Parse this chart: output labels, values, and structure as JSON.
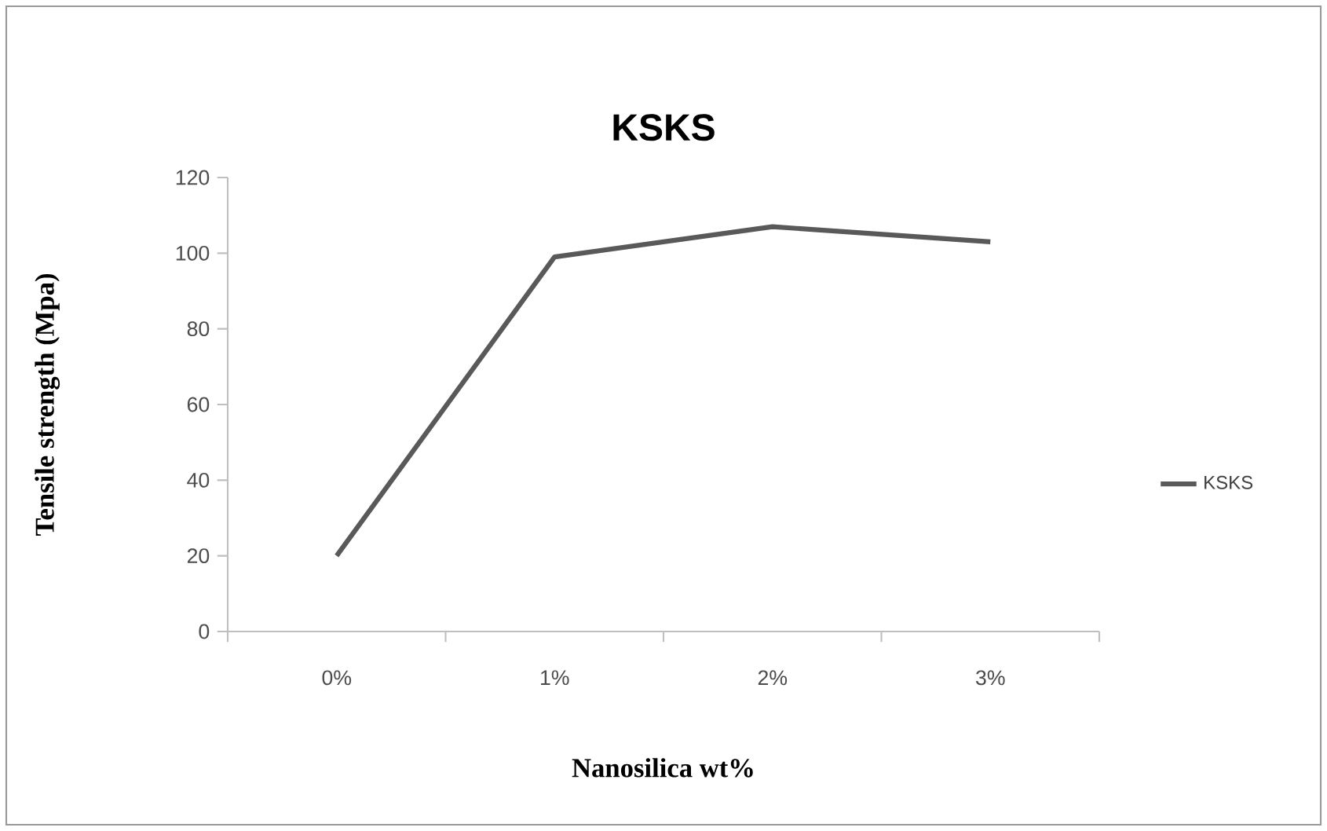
{
  "chart_data": {
    "type": "line",
    "title": "KSKS",
    "xlabel": "Nanosilica wt%",
    "ylabel": "Tensile strength (Mpa)",
    "categories": [
      "0%",
      "1%",
      "2%",
      "3%"
    ],
    "series": [
      {
        "name": "KSKS",
        "color": "#595959",
        "values": [
          20,
          99,
          107,
          103
        ]
      }
    ],
    "ylim": [
      0,
      120
    ],
    "yticks": [
      0,
      20,
      40,
      60,
      80,
      100,
      120
    ],
    "legend": "right"
  }
}
